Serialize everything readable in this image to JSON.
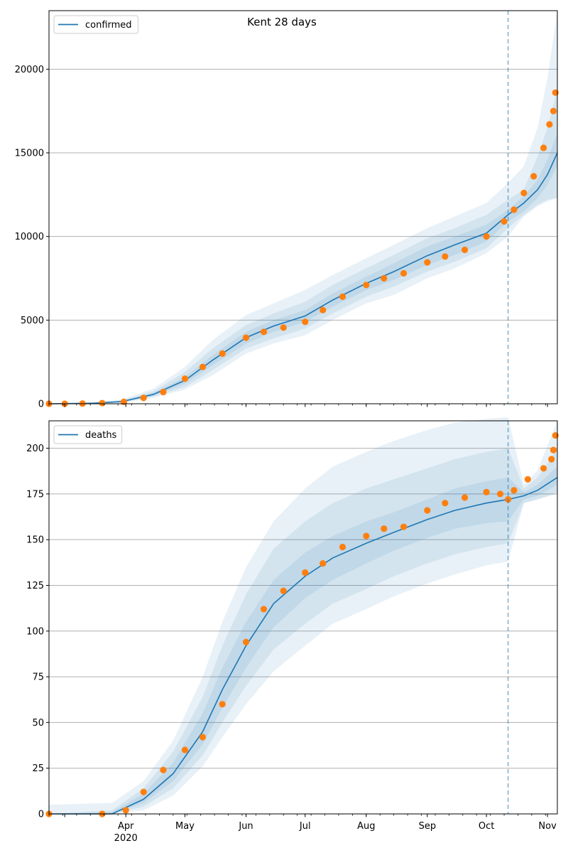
{
  "chart_data": [
    {
      "type": "line",
      "title": "Kent 28 days",
      "xlabel": "",
      "ylabel": "",
      "x_domain": [
        "2020-02-22",
        "2020-11-06"
      ],
      "ylim": [
        0,
        23500
      ],
      "yticks": [
        0,
        5000,
        10000,
        15000,
        20000
      ],
      "grid": "horizontal",
      "legend": {
        "placement": "top-left",
        "entries": [
          "confirmed"
        ]
      },
      "forecast_start": "2020-10-12",
      "series": [
        {
          "name": "confirmed",
          "kind": "line",
          "color": "#1f77b4",
          "x": [
            "2020-02-22",
            "2020-03-15",
            "2020-03-30",
            "2020-04-15",
            "2020-05-01",
            "2020-05-15",
            "2020-06-01",
            "2020-06-15",
            "2020-07-01",
            "2020-07-15",
            "2020-08-01",
            "2020-08-15",
            "2020-09-01",
            "2020-09-15",
            "2020-10-01",
            "2020-10-12",
            "2020-10-20",
            "2020-10-27",
            "2020-11-01",
            "2020-11-06"
          ],
          "values": [
            0,
            30,
            130,
            560,
            1400,
            2600,
            3950,
            4650,
            5250,
            6200,
            7200,
            7900,
            8850,
            9500,
            10200,
            11300,
            12000,
            12800,
            13700,
            15000
          ],
          "band_50": [
            [
              0,
              0
            ],
            [
              20,
              40
            ],
            [
              100,
              170
            ],
            [
              480,
              650
            ],
            [
              1200,
              1600
            ],
            [
              2300,
              2900
            ],
            [
              3600,
              4300
            ],
            [
              4300,
              5000
            ],
            [
              4900,
              5600
            ],
            [
              5800,
              6600
            ],
            [
              6800,
              7600
            ],
            [
              7400,
              8400
            ],
            [
              8300,
              9400
            ],
            [
              8900,
              10000
            ],
            [
              9700,
              10700
            ],
            [
              10900,
              11600
            ],
            [
              11500,
              12400
            ],
            [
              12300,
              13400
            ],
            [
              13100,
              14600
            ],
            [
              14200,
              16200
            ]
          ],
          "band_80": [
            [
              0,
              0
            ],
            [
              10,
              60
            ],
            [
              80,
              200
            ],
            [
              420,
              750
            ],
            [
              1000,
              1900
            ],
            [
              2000,
              3300
            ],
            [
              3300,
              4700
            ],
            [
              3900,
              5400
            ],
            [
              4500,
              6100
            ],
            [
              5400,
              7100
            ],
            [
              6400,
              8100
            ],
            [
              7000,
              8900
            ],
            [
              7900,
              9900
            ],
            [
              8500,
              10500
            ],
            [
              9300,
              11300
            ],
            [
              10500,
              12200
            ],
            [
              11300,
              12800
            ],
            [
              11900,
              14800
            ],
            [
              12200,
              16500
            ],
            [
              12300,
              18800
            ]
          ],
          "band_95": [
            [
              0,
              0
            ],
            [
              0,
              80
            ],
            [
              50,
              250
            ],
            [
              350,
              900
            ],
            [
              850,
              2200
            ],
            [
              1700,
              3800
            ],
            [
              3000,
              5300
            ],
            [
              3600,
              6000
            ],
            [
              4100,
              6800
            ],
            [
              5000,
              7700
            ],
            [
              6000,
              8700
            ],
            [
              6500,
              9500
            ],
            [
              7500,
              10500
            ],
            [
              8100,
              11200
            ],
            [
              9000,
              12000
            ],
            [
              10000,
              13200
            ],
            [
              11200,
              14200
            ],
            [
              11800,
              16500
            ],
            [
              12100,
              19500
            ],
            [
              12300,
              23500
            ]
          ]
        },
        {
          "name": "",
          "kind": "scatter",
          "color": "#ff7f0e",
          "x": [
            "2020-02-22",
            "2020-03-01",
            "2020-03-10",
            "2020-03-20",
            "2020-03-31",
            "2020-04-10",
            "2020-04-20",
            "2020-05-01",
            "2020-05-10",
            "2020-05-20",
            "2020-06-01",
            "2020-06-10",
            "2020-06-20",
            "2020-07-01",
            "2020-07-10",
            "2020-07-20",
            "2020-08-01",
            "2020-08-10",
            "2020-08-20",
            "2020-09-01",
            "2020-09-10",
            "2020-09-20",
            "2020-10-01",
            "2020-10-10",
            "2020-10-15",
            "2020-10-20",
            "2020-10-25",
            "2020-10-30",
            "2020-11-02",
            "2020-11-04",
            "2020-11-05"
          ],
          "values": [
            0,
            0,
            10,
            40,
            110,
            350,
            700,
            1500,
            2200,
            3000,
            3950,
            4300,
            4550,
            4900,
            5600,
            6400,
            7100,
            7500,
            7800,
            8450,
            8800,
            9200,
            10000,
            10900,
            11600,
            12600,
            13600,
            15300,
            16700,
            17500,
            18600
          ]
        }
      ]
    },
    {
      "type": "line",
      "title": "",
      "xlabel": "",
      "ylabel": "",
      "x_domain": [
        "2020-02-22",
        "2020-11-06"
      ],
      "ylim": [
        0,
        215
      ],
      "yticks": [
        0,
        25,
        50,
        75,
        100,
        125,
        150,
        175,
        200
      ],
      "xticks": [
        {
          "date": "2020-04-01",
          "label": "Apr",
          "sublabel": "2020"
        },
        {
          "date": "2020-05-01",
          "label": "May",
          "sublabel": ""
        },
        {
          "date": "2020-06-01",
          "label": "Jun",
          "sublabel": ""
        },
        {
          "date": "2020-07-01",
          "label": "Jul",
          "sublabel": ""
        },
        {
          "date": "2020-08-01",
          "label": "Aug",
          "sublabel": ""
        },
        {
          "date": "2020-09-01",
          "label": "Sep",
          "sublabel": ""
        },
        {
          "date": "2020-10-01",
          "label": "Oct",
          "sublabel": ""
        },
        {
          "date": "2020-11-01",
          "label": "Nov",
          "sublabel": ""
        }
      ],
      "grid": "horizontal",
      "legend": {
        "placement": "top-left",
        "entries": [
          "deaths"
        ]
      },
      "forecast_start": "2020-10-12",
      "series": [
        {
          "name": "deaths",
          "kind": "line",
          "color": "#1f77b4",
          "x": [
            "2020-02-22",
            "2020-03-25",
            "2020-04-10",
            "2020-04-25",
            "2020-05-10",
            "2020-05-20",
            "2020-06-01",
            "2020-06-15",
            "2020-07-01",
            "2020-07-15",
            "2020-08-01",
            "2020-08-15",
            "2020-09-01",
            "2020-09-15",
            "2020-10-01",
            "2020-10-12",
            "2020-10-20",
            "2020-10-27",
            "2020-11-06"
          ],
          "values": [
            0,
            0,
            8,
            22,
            45,
            68,
            92,
            115,
            130,
            140,
            148,
            154,
            161,
            166,
            170,
            172,
            174,
            177,
            184
          ],
          "band_50": [
            [
              0,
              0
            ],
            [
              0,
              1
            ],
            [
              6,
              11
            ],
            [
              18,
              28
            ],
            [
              38,
              55
            ],
            [
              58,
              80
            ],
            [
              80,
              105
            ],
            [
              102,
              128
            ],
            [
              118,
              143
            ],
            [
              128,
              152
            ],
            [
              137,
              160
            ],
            [
              144,
              165
            ],
            [
              151,
              172
            ],
            [
              156,
              178
            ],
            [
              159,
              182
            ],
            [
              160,
              184
            ],
            [
              172,
              176
            ],
            [
              174,
              180
            ],
            [
              180,
              190
            ]
          ],
          "band_80": [
            [
              0,
              0
            ],
            [
              0,
              2
            ],
            [
              4,
              14
            ],
            [
              14,
              34
            ],
            [
              32,
              64
            ],
            [
              50,
              92
            ],
            [
              70,
              120
            ],
            [
              90,
              145
            ],
            [
              104,
              160
            ],
            [
              115,
              170
            ],
            [
              123,
              178
            ],
            [
              130,
              183
            ],
            [
              137,
              189
            ],
            [
              142,
              194
            ],
            [
              146,
              198
            ],
            [
              148,
              200
            ],
            [
              170,
              178
            ],
            [
              172,
              184
            ],
            [
              176,
              200
            ]
          ],
          "band_95": [
            [
              0,
              5
            ],
            [
              0,
              6
            ],
            [
              2,
              18
            ],
            [
              10,
              40
            ],
            [
              26,
              75
            ],
            [
              42,
              105
            ],
            [
              60,
              135
            ],
            [
              78,
              160
            ],
            [
              92,
              178
            ],
            [
              104,
              190
            ],
            [
              112,
              198
            ],
            [
              119,
              204
            ],
            [
              126,
              210
            ],
            [
              131,
              214
            ],
            [
              136,
              216
            ],
            [
              138,
              217
            ],
            [
              170,
              180
            ],
            [
              172,
              188
            ],
            [
              175,
              215
            ]
          ]
        },
        {
          "name": "",
          "kind": "scatter",
          "color": "#ff7f0e",
          "x": [
            "2020-02-22",
            "2020-03-20",
            "2020-04-01",
            "2020-04-10",
            "2020-04-20",
            "2020-05-01",
            "2020-05-10",
            "2020-05-20",
            "2020-06-01",
            "2020-06-10",
            "2020-06-20",
            "2020-07-01",
            "2020-07-10",
            "2020-07-20",
            "2020-08-01",
            "2020-08-10",
            "2020-08-20",
            "2020-09-01",
            "2020-09-10",
            "2020-09-20",
            "2020-10-01",
            "2020-10-08",
            "2020-10-12",
            "2020-10-15",
            "2020-10-22",
            "2020-10-30",
            "2020-11-03",
            "2020-11-04",
            "2020-11-05"
          ],
          "values": [
            0,
            0,
            2,
            12,
            24,
            35,
            42,
            60,
            94,
            112,
            122,
            132,
            137,
            146,
            152,
            156,
            157,
            166,
            170,
            173,
            176,
            175,
            172,
            177,
            183,
            189,
            194,
            199,
            207
          ]
        }
      ]
    }
  ]
}
